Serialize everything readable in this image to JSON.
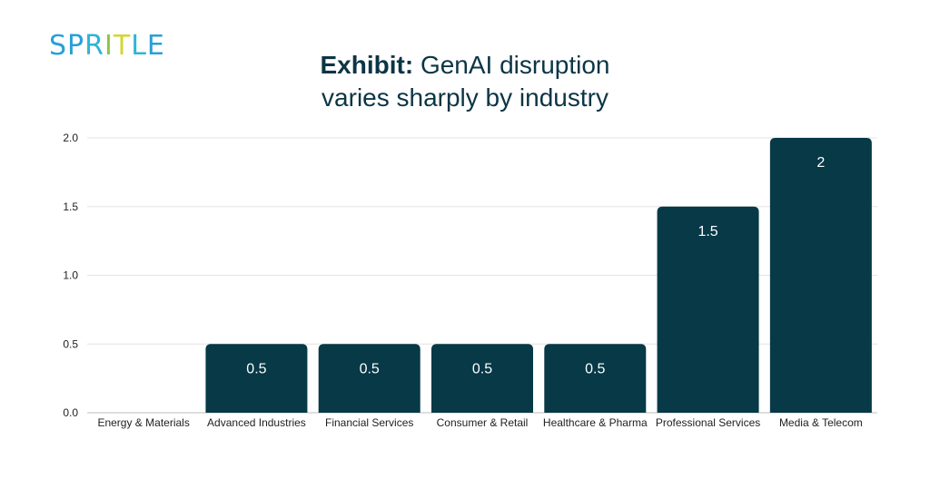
{
  "logo": {
    "text": "SPRITLE",
    "letter_colors": [
      "#2a9fd8",
      "#2a9fd8",
      "#2bb5d8",
      "#8cc63f",
      "#d4d62f",
      "#2bb5d8",
      "#2a9fd8"
    ]
  },
  "title": {
    "bold": "Exhibit:",
    "line1_rest": "GenAI disruption",
    "line2": "varies sharply by industry"
  },
  "chart_data": {
    "type": "bar",
    "categories": [
      "Energy & Materials",
      "Advanced Industries",
      "Financial Services",
      "Consumer & Retail",
      "Healthcare & Pharma",
      "Professional Services",
      "Media & Telecom"
    ],
    "values": [
      0,
      0.5,
      0.5,
      0.5,
      0.5,
      1.5,
      2
    ],
    "data_labels": [
      "",
      "0.5",
      "0.5",
      "0.5",
      "0.5",
      "1.5",
      "2"
    ],
    "y_ticks": [
      "0.0",
      "0.5",
      "1.0",
      "1.5",
      "2.0"
    ],
    "ylim": [
      0,
      2
    ],
    "grid": true,
    "bar_color": "#073947",
    "label_color": "#ffffff"
  }
}
